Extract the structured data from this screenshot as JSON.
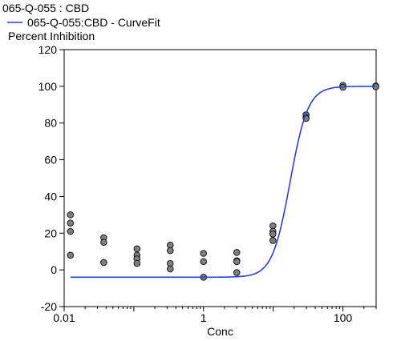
{
  "chart_data": {
    "type": "scatter",
    "title": "065-Q-055  : CBD",
    "ylabel": "Percent Inhibition",
    "xlabel": "Conc",
    "x_scale": "log",
    "xlim": [
      0.01,
      300
    ],
    "ylim": [
      -20,
      120
    ],
    "x_ticks": [
      {
        "value": 0.01,
        "label": "0.01"
      },
      {
        "value": 1,
        "label": "1"
      },
      {
        "value": 100,
        "label": "100"
      }
    ],
    "y_ticks": [
      {
        "value": -20,
        "label": "-20"
      },
      {
        "value": 0,
        "label": "0"
      },
      {
        "value": 20,
        "label": "20"
      },
      {
        "value": 40,
        "label": "40"
      },
      {
        "value": 60,
        "label": "60"
      },
      {
        "value": 80,
        "label": "80"
      },
      {
        "value": 100,
        "label": "100"
      },
      {
        "value": 120,
        "label": "120"
      }
    ],
    "grid": false,
    "series": [
      {
        "kind": "points",
        "color": "#7f7f7f",
        "points": [
          {
            "x": 0.0123,
            "y": 30
          },
          {
            "x": 0.0123,
            "y": 25.5
          },
          {
            "x": 0.0123,
            "y": 21
          },
          {
            "x": 0.0123,
            "y": 8
          },
          {
            "x": 0.037,
            "y": 17.5
          },
          {
            "x": 0.037,
            "y": 15
          },
          {
            "x": 0.037,
            "y": 4
          },
          {
            "x": 0.111,
            "y": 11.5
          },
          {
            "x": 0.111,
            "y": 8
          },
          {
            "x": 0.111,
            "y": 6
          },
          {
            "x": 0.111,
            "y": 3.5
          },
          {
            "x": 0.333,
            "y": 13.5
          },
          {
            "x": 0.333,
            "y": 10.5
          },
          {
            "x": 0.333,
            "y": 3.5
          },
          {
            "x": 0.333,
            "y": 0.5
          },
          {
            "x": 1.0,
            "y": 9
          },
          {
            "x": 1.0,
            "y": 4.5
          },
          {
            "x": 1.0,
            "y": -4
          },
          {
            "x": 3.0,
            "y": 9.5
          },
          {
            "x": 3.0,
            "y": 5
          },
          {
            "x": 3.0,
            "y": 4.5
          },
          {
            "x": 3.0,
            "y": -1.5
          },
          {
            "x": 9.9,
            "y": 24
          },
          {
            "x": 9.9,
            "y": 21
          },
          {
            "x": 9.9,
            "y": 19.5
          },
          {
            "x": 9.9,
            "y": 16
          },
          {
            "x": 29.6,
            "y": 84.5
          },
          {
            "x": 29.6,
            "y": 83
          },
          {
            "x": 29.6,
            "y": 82.5
          },
          {
            "x": 100,
            "y": 100.5
          },
          {
            "x": 100,
            "y": 99.5
          },
          {
            "x": 296,
            "y": 100.2
          },
          {
            "x": 296,
            "y": 99.8
          }
        ]
      },
      {
        "kind": "curve",
        "name": "065-Q-055:CBD - CurveFit",
        "color": "#2b3fd6",
        "model": {
          "bottom": -4,
          "top": 100,
          "ec50": 17.5,
          "hill": 3.4
        },
        "x_range": [
          0.0123,
          296
        ]
      }
    ],
    "legend": {
      "placement": "top-left"
    }
  }
}
